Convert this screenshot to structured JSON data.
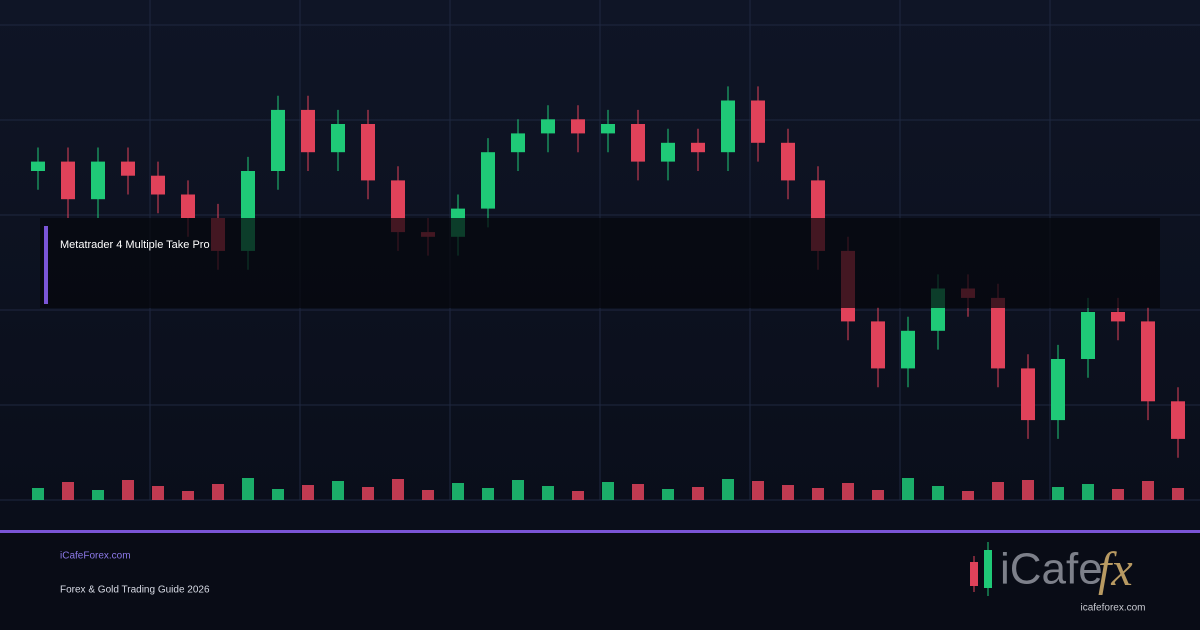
{
  "chart_data": {
    "type": "candlestick",
    "title": "Metatrader 4 Multiple Take Pro",
    "open": [
      70,
      72,
      64,
      72,
      69,
      65,
      60,
      53,
      70,
      83,
      74,
      80,
      68,
      57,
      56,
      62,
      74,
      78,
      81,
      78,
      80,
      72,
      76,
      74,
      85,
      76,
      68,
      53,
      38,
      28,
      36,
      45,
      43,
      28,
      17,
      30,
      40,
      38,
      21
    ],
    "high": [
      75,
      75,
      75,
      75,
      72,
      68,
      63,
      73,
      86,
      86,
      83,
      83,
      71,
      60,
      65,
      77,
      81,
      84,
      84,
      83,
      83,
      79,
      79,
      88,
      88,
      79,
      71,
      56,
      41,
      39,
      48,
      48,
      46,
      31,
      33,
      43,
      43,
      41,
      24
    ],
    "low": [
      66,
      60,
      60,
      65,
      61,
      56,
      49,
      49,
      66,
      70,
      70,
      64,
      53,
      52,
      52,
      58,
      70,
      74,
      74,
      74,
      68,
      68,
      70,
      70,
      72,
      64,
      49,
      34,
      24,
      24,
      32,
      39,
      24,
      13,
      13,
      26,
      34,
      17,
      9
    ],
    "close": [
      72,
      64,
      72,
      69,
      65,
      60,
      53,
      70,
      83,
      74,
      80,
      68,
      57,
      56,
      62,
      74,
      78,
      81,
      78,
      80,
      72,
      76,
      74,
      85,
      76,
      68,
      53,
      38,
      28,
      36,
      45,
      43,
      28,
      17,
      30,
      40,
      38,
      21,
      13
    ],
    "volume": [
      12,
      18,
      10,
      20,
      14,
      9,
      16,
      22,
      11,
      15,
      19,
      13,
      21,
      10,
      17,
      12,
      20,
      14,
      9,
      18,
      16,
      11,
      13,
      21,
      19,
      15,
      12,
      17,
      10,
      22,
      14,
      9,
      18,
      20,
      13,
      16,
      11,
      19,
      12
    ],
    "ylim": [
      0,
      100
    ],
    "volume_lim": [
      0,
      40
    ],
    "up_color": "#1fc977",
    "down_color": "#e0425a"
  },
  "footer": {
    "site": "iCafeForex.com",
    "subtitle": "Forex & Gold Trading Guide 2026"
  },
  "logo": {
    "brand": "iCafe",
    "mark": "fx",
    "url": "icafeforex.com"
  }
}
